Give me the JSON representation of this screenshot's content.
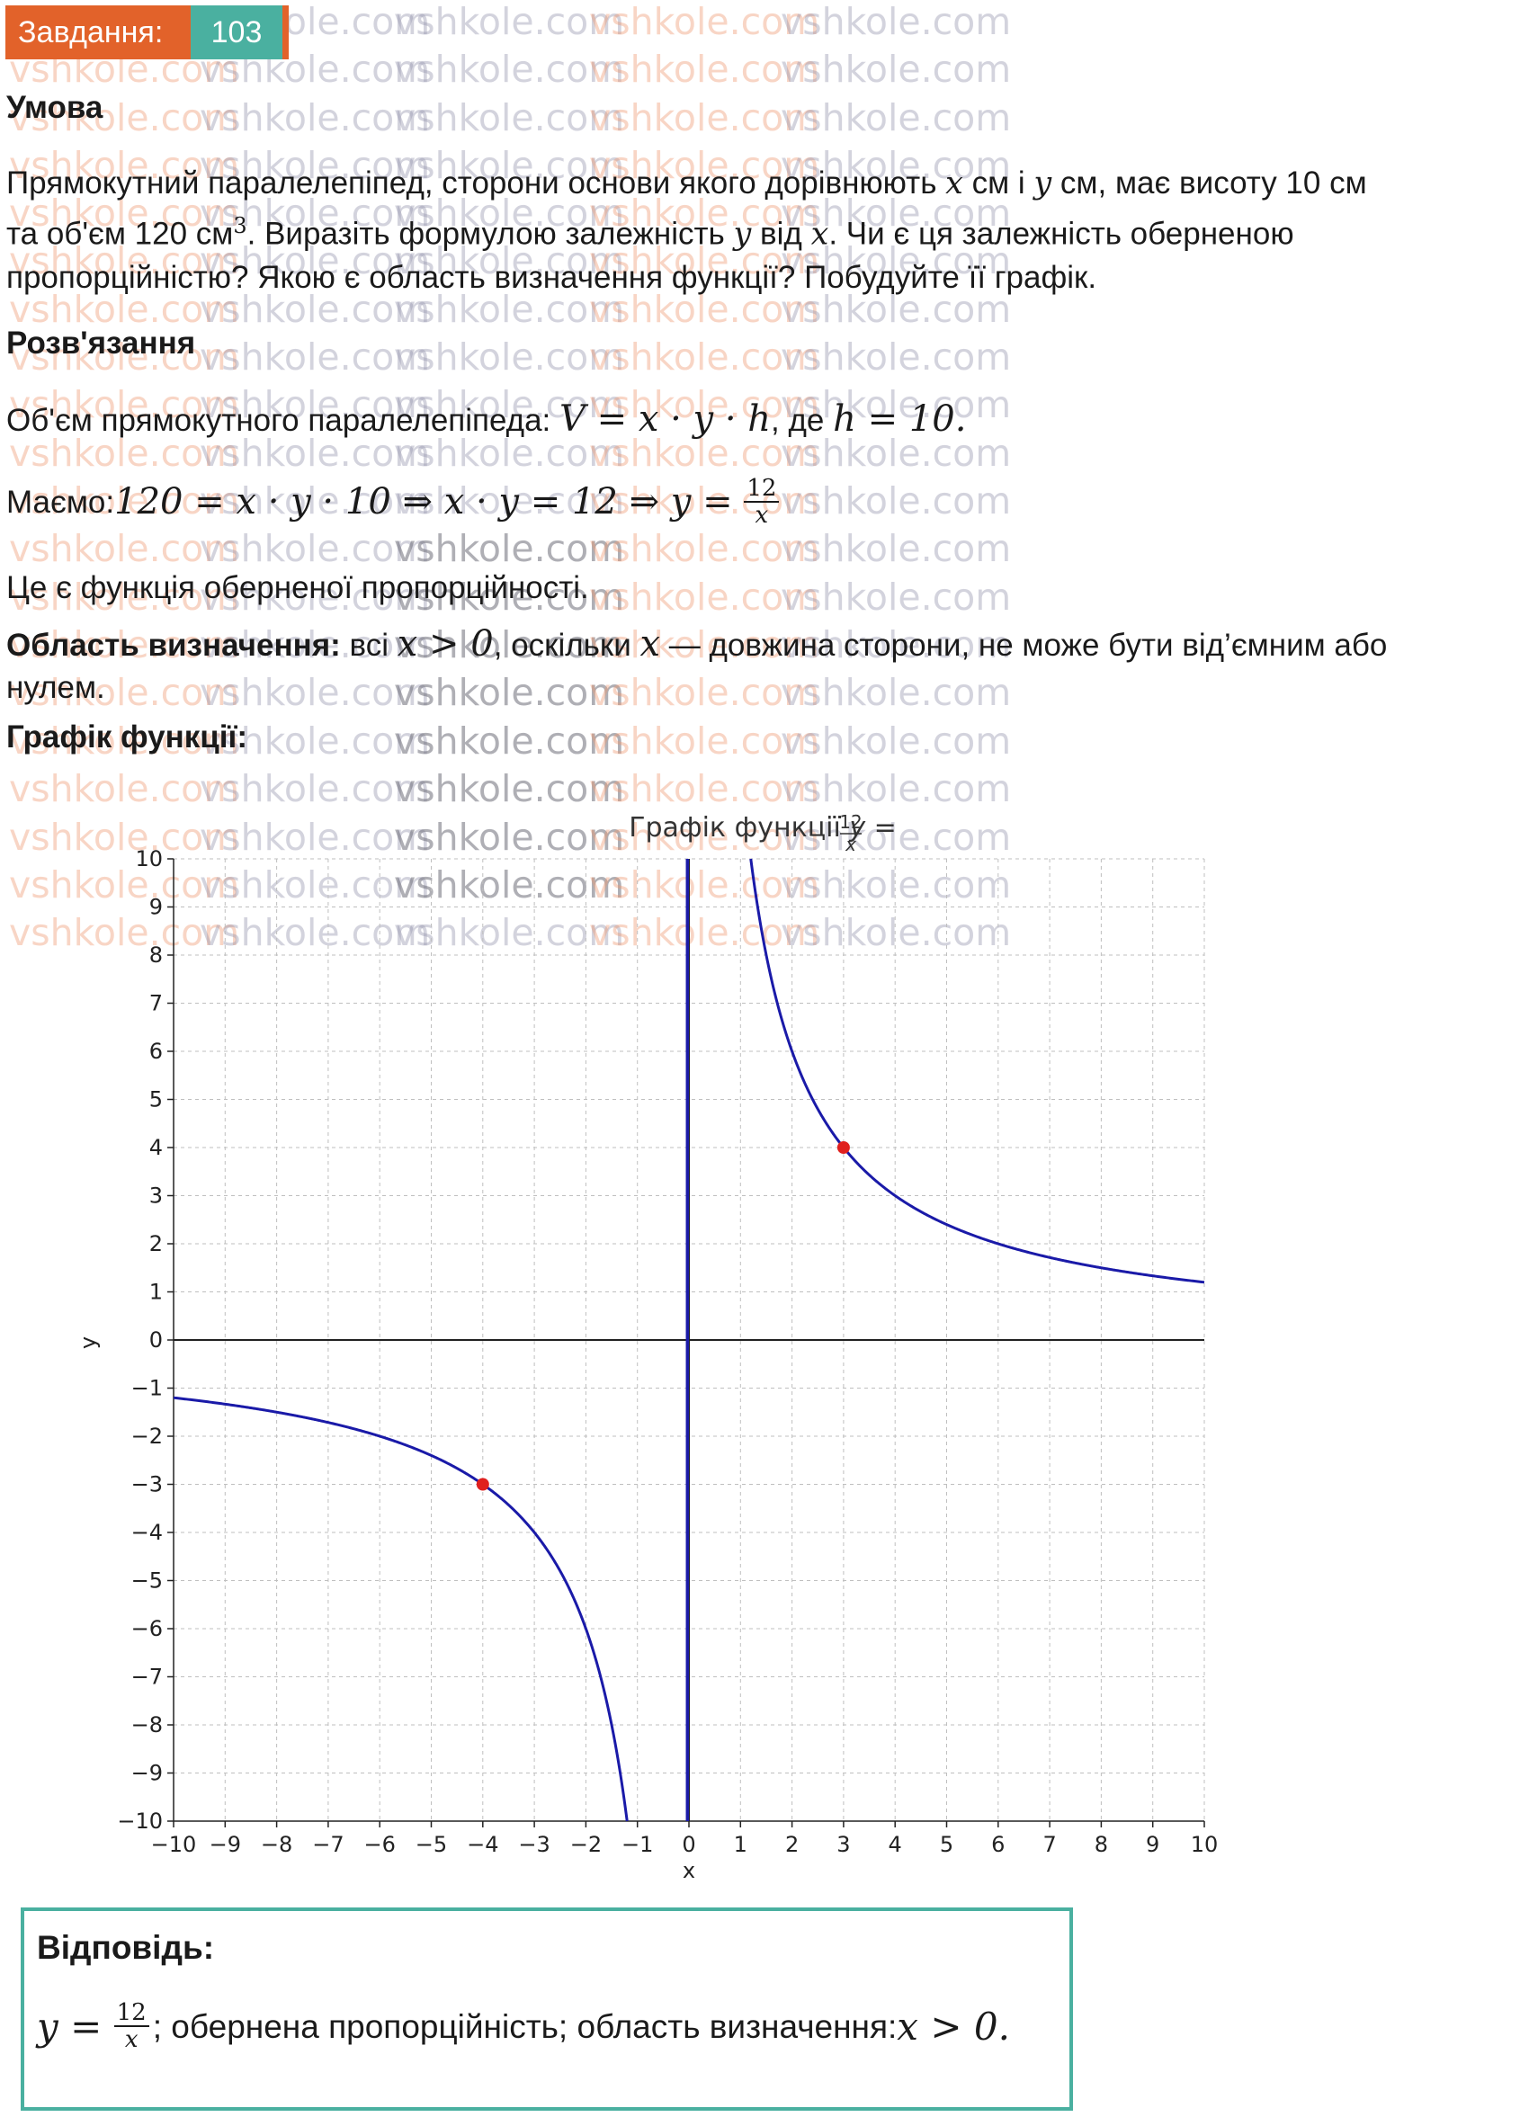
{
  "watermark": "vshkole.com",
  "task": {
    "label": "Завдання:",
    "number": "103"
  },
  "condition": {
    "heading": "Умова",
    "text_1": "Прямокутний паралелепіпед, сторони основи якого дорівнюють ",
    "var_x": "x",
    "text_2": " см і ",
    "var_y": "y",
    "text_3": " см, має висоту 10 см",
    "text_4": "та об'єм 120 см",
    "sup": "3",
    "text_5": ". Виразіть формулою залежність ",
    "text_6": " від ",
    "text_7": ". Чи є ця залежність оберненою",
    "text_8": "пропорційністю? Якою є область визначення функції? Побудуйте її графік."
  },
  "solution": {
    "heading": "Розв'язання",
    "volume_text": "Об'єм прямокутного паралелепіпеда: ",
    "volume_formula": "V = x · y · h",
    "volume_where": ", де ",
    "volume_h": "h = 10.",
    "have_text": "Маємо: ",
    "have_formula": "120 = x · y · 10 ⇒ x · y = 12 ⇒ y = ",
    "frac_num": "12",
    "frac_den": "x",
    "inverse_text": "Це є функція оберненої пропорційності.",
    "domain_label": "Область визначення:",
    "domain_text_1": " всі ",
    "domain_formula": "x > 0",
    "domain_text_2": ", оскільки ",
    "domain_text_3": " — довжина сторони, не може бути від’ємним або",
    "domain_text_4": "нулем.",
    "graph_label": "Графік функції:"
  },
  "chart_data": {
    "type": "line",
    "title_prefix": "Графік функції ",
    "title_y": "y",
    "title_eq": " = ",
    "title_num": "12",
    "title_den": "x",
    "xlabel": "x",
    "ylabel": "y",
    "xlim": [
      -10,
      10
    ],
    "ylim": [
      -10,
      10
    ],
    "xticks": [
      -10,
      -9,
      -8,
      -7,
      -6,
      -5,
      -4,
      -3,
      -2,
      -1,
      0,
      1,
      2,
      3,
      4,
      5,
      6,
      7,
      8,
      9,
      10
    ],
    "yticks": [
      -10,
      -9,
      -8,
      -7,
      -6,
      -5,
      -4,
      -3,
      -2,
      -1,
      0,
      1,
      2,
      3,
      4,
      5,
      6,
      7,
      8,
      9,
      10
    ],
    "grid": true,
    "function": "y = 12/x",
    "k": 12,
    "line_color": "#1a1aa8",
    "point_color": "#e0201e",
    "highlighted_points": [
      {
        "x": 3,
        "y": 4
      },
      {
        "x": -4,
        "y": -3
      }
    ]
  },
  "answer": {
    "heading": "Відповідь:",
    "formula_lhs": "y = ",
    "frac_num": "12",
    "frac_den": "x",
    "text": "; обернена пропорційність; область визначення: ",
    "domain_formula": "x > 0."
  },
  "colors": {
    "badge_bg": "#e2622a",
    "badge_num_bg": "#4ab0a0",
    "answer_border": "#4ab0a0"
  }
}
